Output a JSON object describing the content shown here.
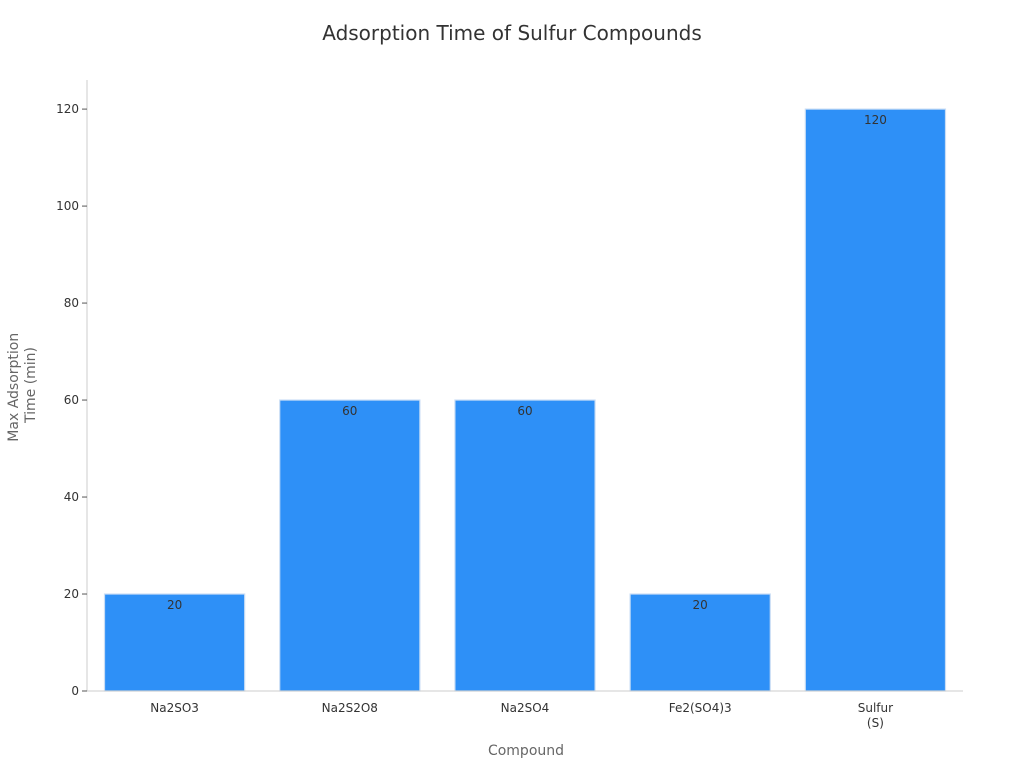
{
  "chart_data": {
    "type": "bar",
    "title": "Adsorption Time of Sulfur Compounds",
    "xlabel": "Compound",
    "ylabel_lines": [
      "Max Adsorption",
      "Time (min)"
    ],
    "categories": [
      [
        "Na2SO3"
      ],
      [
        "Na2S2O8"
      ],
      [
        "Na2SO4"
      ],
      [
        "Fe2(SO4)3"
      ],
      [
        "Sulfur",
        "(S)"
      ]
    ],
    "values": [
      20,
      60,
      60,
      20,
      120
    ],
    "data_labels": [
      "20",
      "60",
      "60",
      "20",
      "120"
    ],
    "ylim": [
      0,
      126
    ],
    "yticks": [
      0,
      20,
      40,
      60,
      80,
      100,
      120
    ],
    "grid": false,
    "legend": "none",
    "bar_color": "#2e90f7",
    "bar_edge_color": "#c9ddf5",
    "axis_color": "#cccccc",
    "text_color": "#333333",
    "label_color": "#666666"
  }
}
